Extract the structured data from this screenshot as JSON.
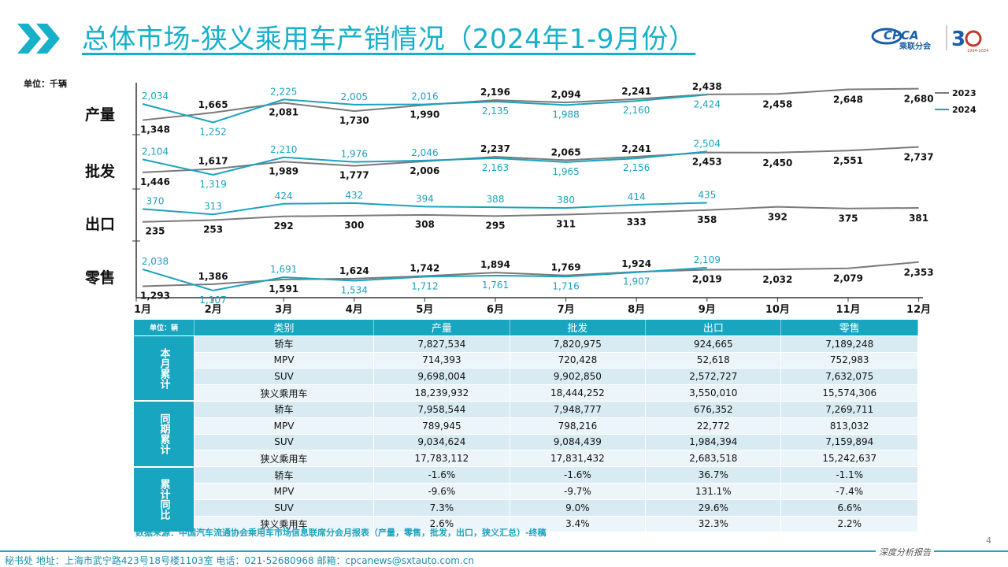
{
  "title": "总体市场-狭义乘用车产销情况（2024年1-9月份）",
  "logo": {
    "brand": "CPCA",
    "brand_cn": "乘联分会",
    "anniv": "30",
    "years": "1994-2024"
  },
  "unit_label": "单位：千辆",
  "colors": {
    "accent": "#17a5c0",
    "y2023": "#7a7a7a",
    "y2024": "#1ba3bd"
  },
  "legend": [
    "2023",
    "2024"
  ],
  "chart_data": {
    "type": "line",
    "categories": [
      "1月",
      "2月",
      "3月",
      "4月",
      "5月",
      "6月",
      "7月",
      "8月",
      "9月",
      "10月",
      "11月",
      "12月"
    ],
    "panels": [
      {
        "name": "产量",
        "series": [
          {
            "name": "2023",
            "values": [
              1348,
              1665,
              2081,
              1730,
              1990,
              2196,
              2094,
              2241,
              2438,
              2458,
              2648,
              2680
            ]
          },
          {
            "name": "2024",
            "values": [
              2034,
              1252,
              2225,
              2005,
              2016,
              2135,
              1988,
              2160,
              2424
            ]
          }
        ]
      },
      {
        "name": "批发",
        "series": [
          {
            "name": "2023",
            "values": [
              1446,
              1617,
              1989,
              1777,
              2006,
              2237,
              2065,
              2241,
              2453,
              2450,
              2551,
              2737
            ]
          },
          {
            "name": "2024",
            "values": [
              2104,
              1319,
              2210,
              1976,
              2046,
              2163,
              1965,
              2156,
              2504
            ]
          }
        ]
      },
      {
        "name": "出口",
        "series": [
          {
            "name": "2023",
            "values": [
              235,
              253,
              292,
              300,
              308,
              295,
              311,
              333,
              358,
              392,
              375,
              381
            ]
          },
          {
            "name": "2024",
            "values": [
              370,
              313,
              424,
              432,
              394,
              388,
              380,
              414,
              435
            ]
          }
        ]
      },
      {
        "name": "零售",
        "series": [
          {
            "name": "2023",
            "values": [
              1293,
              1386,
              1591,
              1624,
              1742,
              1894,
              1769,
              1924,
              2019,
              2032,
              2079,
              2353
            ]
          },
          {
            "name": "2024",
            "values": [
              2038,
              1107,
              1691,
              1534,
              1712,
              1761,
              1716,
              1907,
              2109
            ]
          }
        ]
      }
    ]
  },
  "table": {
    "unit": "单位：辆",
    "headers": [
      "类别",
      "产量",
      "批发",
      "出口",
      "零售"
    ],
    "groups": [
      {
        "name": "本月累计",
        "rows": [
          [
            "轿车",
            "7,827,534",
            "7,820,975",
            "924,665",
            "7,189,248"
          ],
          [
            "MPV",
            "714,393",
            "720,428",
            "52,618",
            "752,983"
          ],
          [
            "SUV",
            "9,698,004",
            "9,902,850",
            "2,572,727",
            "7,632,075"
          ],
          [
            "狭义乘用车",
            "18,239,932",
            "18,444,252",
            "3,550,010",
            "15,574,306"
          ]
        ]
      },
      {
        "name": "同期累计",
        "rows": [
          [
            "轿车",
            "7,958,544",
            "7,948,777",
            "676,352",
            "7,269,711"
          ],
          [
            "MPV",
            "789,945",
            "798,216",
            "22,772",
            "813,032"
          ],
          [
            "SUV",
            "9,034,624",
            "9,084,439",
            "1,984,394",
            "7,159,894"
          ],
          [
            "狭义乘用车",
            "17,783,112",
            "17,831,432",
            "2,683,518",
            "15,242,637"
          ]
        ]
      },
      {
        "name": "累计同比",
        "rows": [
          [
            "轿车",
            "-1.6%",
            "-1.6%",
            "36.7%",
            "-1.1%"
          ],
          [
            "MPV",
            "-9.6%",
            "-9.7%",
            "131.1%",
            "-7.4%"
          ],
          [
            "SUV",
            "7.3%",
            "9.0%",
            "29.6%",
            "6.6%"
          ],
          [
            "狭义乘用车",
            "2.6%",
            "3.4%",
            "32.3%",
            "2.2%"
          ]
        ]
      }
    ]
  },
  "source": "数据来源：中国汽车流通协会乘用车市场信息联席分会月报表（产量，零售，批发，出口，狭义汇总）-终稿",
  "page_number": "4",
  "footer": "秘书处   地址：上海市武宁路423号18号楼1103室   电话：021-52680968   邮箱：cpcanews@sxtauto.com.cn",
  "footer_right": "深度分析报告"
}
